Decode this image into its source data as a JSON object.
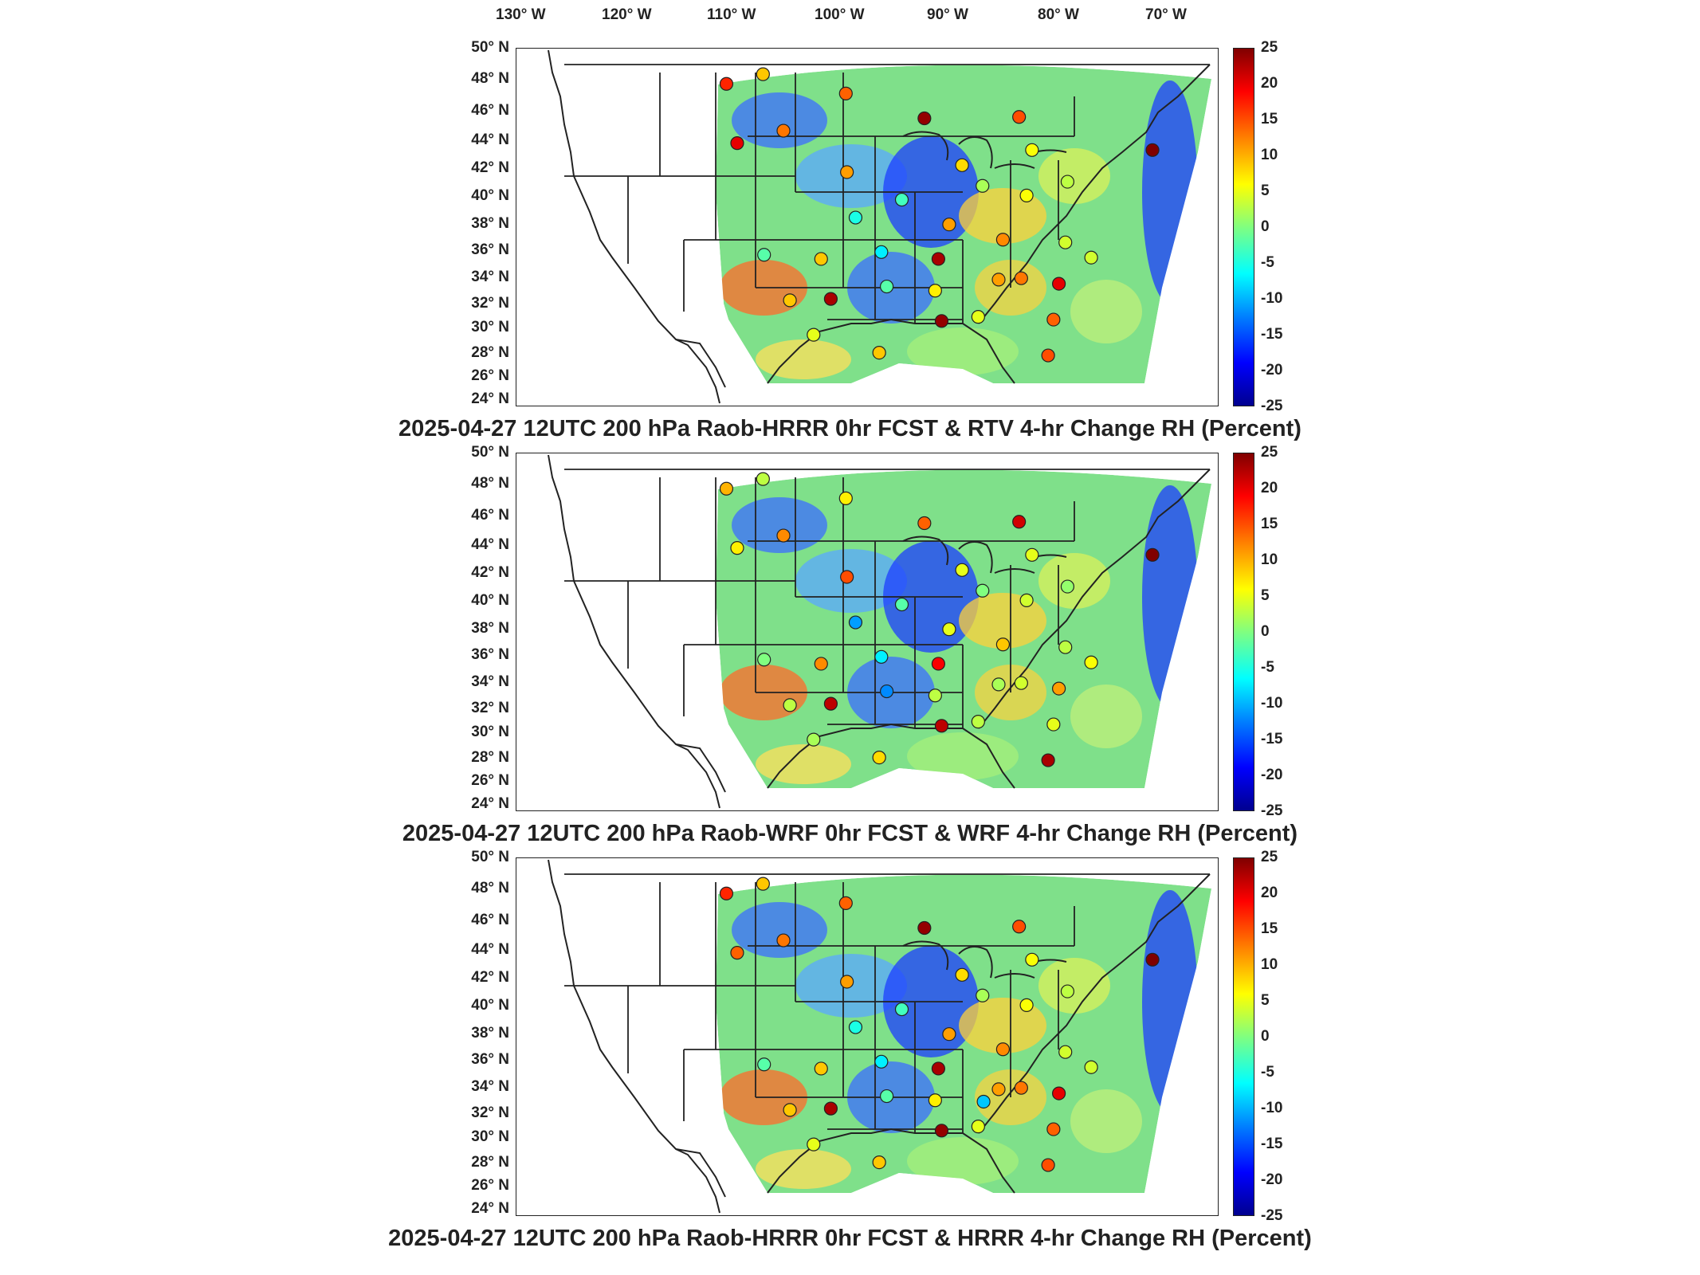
{
  "longitude_labels": [
    "130° W",
    "120° W",
    "110° W",
    "100° W",
    "90° W",
    "80° W",
    "70° W"
  ],
  "latitude_labels": [
    "50° N",
    "48° N",
    "46° N",
    "44° N",
    "42° N",
    "40° N",
    "38° N",
    "36° N",
    "34° N",
    "32° N",
    "30° N",
    "28° N",
    "26° N",
    "24° N"
  ],
  "colorbar_ticks": [
    "25",
    "20",
    "15",
    "10",
    "5",
    "0",
    "-5",
    "-10",
    "-15",
    "-20",
    "-25"
  ],
  "colors": {
    "scale": [
      "#00008f",
      "#0000ff",
      "#0080ff",
      "#00ffff",
      "#80ff80",
      "#ffff00",
      "#ff8000",
      "#ff0000",
      "#800000"
    ],
    "border": "#222222"
  },
  "panels": [
    {
      "title": "2025-04-27 12UTC 200 hPa Raob-HRRR 0hr FCST & RTV 4-hr Change RH (Percent)",
      "stations": [
        {
          "lon": -111.9,
          "lat": 47.5,
          "value": 17
        },
        {
          "lon": -108.5,
          "lat": 48.2,
          "value": 9
        },
        {
          "lon": -100.8,
          "lat": 46.8,
          "value": 14
        },
        {
          "lon": -93.5,
          "lat": 45.0,
          "value": 24
        },
        {
          "lon": -84.7,
          "lat": 45.1,
          "value": 15
        },
        {
          "lon": -106.6,
          "lat": 44.1,
          "value": 13
        },
        {
          "lon": -110.9,
          "lat": 43.2,
          "value": 20
        },
        {
          "lon": -100.7,
          "lat": 41.1,
          "value": 11
        },
        {
          "lon": -90.0,
          "lat": 41.6,
          "value": 8
        },
        {
          "lon": -83.5,
          "lat": 42.7,
          "value": 6
        },
        {
          "lon": -72.3,
          "lat": 42.7,
          "value": 25
        },
        {
          "lon": -88.1,
          "lat": 40.1,
          "value": 2
        },
        {
          "lon": -84.0,
          "lat": 39.4,
          "value": 6
        },
        {
          "lon": -80.2,
          "lat": 40.4,
          "value": 3
        },
        {
          "lon": -99.9,
          "lat": 37.8,
          "value": -5
        },
        {
          "lon": -95.6,
          "lat": 39.1,
          "value": -3
        },
        {
          "lon": -91.2,
          "lat": 37.3,
          "value": 11
        },
        {
          "lon": -86.2,
          "lat": 36.2,
          "value": 12
        },
        {
          "lon": -80.4,
          "lat": 36.0,
          "value": 4
        },
        {
          "lon": -92.2,
          "lat": 34.8,
          "value": 23
        },
        {
          "lon": -108.4,
          "lat": 35.1,
          "value": -2
        },
        {
          "lon": -103.1,
          "lat": 34.8,
          "value": 9
        },
        {
          "lon": -97.5,
          "lat": 35.3,
          "value": -7
        },
        {
          "lon": -102.2,
          "lat": 31.9,
          "value": 23
        },
        {
          "lon": -106.0,
          "lat": 31.8,
          "value": 9
        },
        {
          "lon": -97.0,
          "lat": 32.8,
          "value": -2
        },
        {
          "lon": -92.5,
          "lat": 32.5,
          "value": 7
        },
        {
          "lon": -86.6,
          "lat": 33.3,
          "value": 11
        },
        {
          "lon": -84.5,
          "lat": 33.4,
          "value": 13
        },
        {
          "lon": -81.0,
          "lat": 33.0,
          "value": 20
        },
        {
          "lon": -78.0,
          "lat": 34.9,
          "value": 4
        },
        {
          "lon": -91.9,
          "lat": 30.3,
          "value": 24
        },
        {
          "lon": -88.5,
          "lat": 30.6,
          "value": 5
        },
        {
          "lon": -81.5,
          "lat": 30.4,
          "value": 14
        },
        {
          "lon": -97.7,
          "lat": 28.0,
          "value": 9
        },
        {
          "lon": -103.8,
          "lat": 29.3,
          "value": 5
        },
        {
          "lon": -82.0,
          "lat": 27.8,
          "value": 15
        }
      ]
    },
    {
      "title": "2025-04-27 12UTC 200 hPa Raob-WRF 0hr FCST & WRF 4-hr Change RH (Percent)",
      "stations": [
        {
          "lon": -111.9,
          "lat": 47.5,
          "value": 10
        },
        {
          "lon": -108.5,
          "lat": 48.2,
          "value": 3
        },
        {
          "lon": -100.8,
          "lat": 46.8,
          "value": 7
        },
        {
          "lon": -93.5,
          "lat": 45.0,
          "value": 14
        },
        {
          "lon": -84.7,
          "lat": 45.1,
          "value": 21
        },
        {
          "lon": -106.6,
          "lat": 44.1,
          "value": 12
        },
        {
          "lon": -110.9,
          "lat": 43.2,
          "value": 7
        },
        {
          "lon": -100.7,
          "lat": 41.1,
          "value": 15
        },
        {
          "lon": -90.0,
          "lat": 41.6,
          "value": 5
        },
        {
          "lon": -83.5,
          "lat": 42.7,
          "value": 5
        },
        {
          "lon": -72.3,
          "lat": 42.7,
          "value": 25
        },
        {
          "lon": -88.1,
          "lat": 40.1,
          "value": 0
        },
        {
          "lon": -84.0,
          "lat": 39.4,
          "value": 4
        },
        {
          "lon": -80.2,
          "lat": 40.4,
          "value": 1
        },
        {
          "lon": -99.9,
          "lat": 37.8,
          "value": -11
        },
        {
          "lon": -95.6,
          "lat": 39.1,
          "value": -2
        },
        {
          "lon": -91.2,
          "lat": 37.3,
          "value": 5
        },
        {
          "lon": -86.2,
          "lat": 36.2,
          "value": 9
        },
        {
          "lon": -80.4,
          "lat": 36.0,
          "value": 3
        },
        {
          "lon": -92.2,
          "lat": 34.8,
          "value": 19
        },
        {
          "lon": -108.4,
          "lat": 35.1,
          "value": 0
        },
        {
          "lon": -103.1,
          "lat": 34.8,
          "value": 12
        },
        {
          "lon": -97.5,
          "lat": 35.3,
          "value": -7
        },
        {
          "lon": -102.2,
          "lat": 31.9,
          "value": 22
        },
        {
          "lon": -106.0,
          "lat": 31.8,
          "value": 3
        },
        {
          "lon": -97.0,
          "lat": 32.8,
          "value": -12
        },
        {
          "lon": -92.5,
          "lat": 32.5,
          "value": 3
        },
        {
          "lon": -86.6,
          "lat": 33.3,
          "value": 2
        },
        {
          "lon": -84.5,
          "lat": 33.4,
          "value": 4
        },
        {
          "lon": -81.0,
          "lat": 33.0,
          "value": 11
        },
        {
          "lon": -78.0,
          "lat": 34.9,
          "value": 6
        },
        {
          "lon": -91.9,
          "lat": 30.3,
          "value": 22
        },
        {
          "lon": -88.5,
          "lat": 30.6,
          "value": 3
        },
        {
          "lon": -81.5,
          "lat": 30.4,
          "value": 5
        },
        {
          "lon": -97.7,
          "lat": 28.0,
          "value": 8
        },
        {
          "lon": -103.8,
          "lat": 29.3,
          "value": 2
        },
        {
          "lon": -82.0,
          "lat": 27.8,
          "value": 23
        }
      ]
    },
    {
      "title": "2025-04-27 12UTC 200 hPa Raob-HRRR 0hr FCST & HRRR 4-hr Change RH (Percent)",
      "stations": [
        {
          "lon": -111.9,
          "lat": 47.5,
          "value": 17
        },
        {
          "lon": -108.5,
          "lat": 48.2,
          "value": 9
        },
        {
          "lon": -100.8,
          "lat": 46.8,
          "value": 14
        },
        {
          "lon": -93.5,
          "lat": 45.0,
          "value": 24
        },
        {
          "lon": -84.7,
          "lat": 45.1,
          "value": 15
        },
        {
          "lon": -106.6,
          "lat": 44.1,
          "value": 13
        },
        {
          "lon": -110.9,
          "lat": 43.2,
          "value": 14
        },
        {
          "lon": -100.7,
          "lat": 41.1,
          "value": 11
        },
        {
          "lon": -90.0,
          "lat": 41.6,
          "value": 8
        },
        {
          "lon": -83.5,
          "lat": 42.7,
          "value": 6
        },
        {
          "lon": -72.3,
          "lat": 42.7,
          "value": 25
        },
        {
          "lon": -88.1,
          "lat": 40.1,
          "value": 2
        },
        {
          "lon": -84.0,
          "lat": 39.4,
          "value": 6
        },
        {
          "lon": -80.2,
          "lat": 40.4,
          "value": 3
        },
        {
          "lon": -99.9,
          "lat": 37.8,
          "value": -5
        },
        {
          "lon": -95.6,
          "lat": 39.1,
          "value": -3
        },
        {
          "lon": -91.2,
          "lat": 37.3,
          "value": 11
        },
        {
          "lon": -86.2,
          "lat": 36.2,
          "value": 12
        },
        {
          "lon": -80.4,
          "lat": 36.0,
          "value": 4
        },
        {
          "lon": -92.2,
          "lat": 34.8,
          "value": 23
        },
        {
          "lon": -108.4,
          "lat": 35.1,
          "value": -2
        },
        {
          "lon": -103.1,
          "lat": 34.8,
          "value": 9
        },
        {
          "lon": -97.5,
          "lat": 35.3,
          "value": -7
        },
        {
          "lon": -102.2,
          "lat": 31.9,
          "value": 23
        },
        {
          "lon": -106.0,
          "lat": 31.8,
          "value": 9
        },
        {
          "lon": -97.0,
          "lat": 32.8,
          "value": -2
        },
        {
          "lon": -92.5,
          "lat": 32.5,
          "value": 7
        },
        {
          "lon": -88.0,
          "lat": 32.4,
          "value": -9
        },
        {
          "lon": -86.6,
          "lat": 33.3,
          "value": 11
        },
        {
          "lon": -84.5,
          "lat": 33.4,
          "value": 13
        },
        {
          "lon": -81.0,
          "lat": 33.0,
          "value": 20
        },
        {
          "lon": -78.0,
          "lat": 34.9,
          "value": 4
        },
        {
          "lon": -91.9,
          "lat": 30.3,
          "value": 24
        },
        {
          "lon": -88.5,
          "lat": 30.6,
          "value": 5
        },
        {
          "lon": -81.5,
          "lat": 30.4,
          "value": 14
        },
        {
          "lon": -97.7,
          "lat": 28.0,
          "value": 9
        },
        {
          "lon": -103.8,
          "lat": 29.3,
          "value": 5
        },
        {
          "lon": -82.0,
          "lat": 27.8,
          "value": 15
        }
      ]
    }
  ]
}
